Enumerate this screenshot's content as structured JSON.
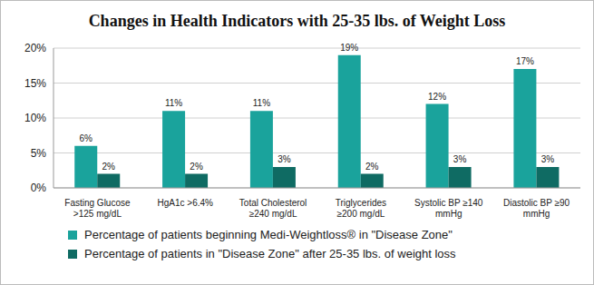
{
  "chart_data": {
    "type": "bar",
    "title": "Changes in Health Indicators with 25-35 lbs. of Weight Loss",
    "categories": [
      "Fasting Glucose >125 mg/dL",
      "HgA1c >6.4%",
      "Total Cholesterol ≥240 mg/dL",
      "Triglycerides ≥200 mg/dL",
      "Systolic BP ≥140 mmHg",
      "Diastolic BP ≥90 mmHg"
    ],
    "series": [
      {
        "name": "Percentage of patients beginning Medi-Weightloss® in \"Disease Zone\"",
        "color": "#1aa39c",
        "values": [
          6,
          11,
          11,
          19,
          12,
          17
        ],
        "value_labels": [
          "6%",
          "11%",
          "11%",
          "19%",
          "12%",
          "17%"
        ]
      },
      {
        "name": "Percentage of patients in \"Disease Zone\" after 25-35 lbs. of weight loss",
        "color": "#0f6b63",
        "values": [
          2,
          2,
          3,
          2,
          3,
          3
        ],
        "value_labels": [
          "2%",
          "2%",
          "3%",
          "2%",
          "3%",
          "3%"
        ]
      }
    ],
    "ylim": [
      0,
      20
    ],
    "yticks": [
      {
        "value": 0,
        "label": "0%"
      },
      {
        "value": 5,
        "label": "5%"
      },
      {
        "value": 10,
        "label": "10%"
      },
      {
        "value": 15,
        "label": "15%"
      },
      {
        "value": 20,
        "label": "20%"
      }
    ],
    "grid": true,
    "data_labels": true,
    "legend": "bottom"
  }
}
